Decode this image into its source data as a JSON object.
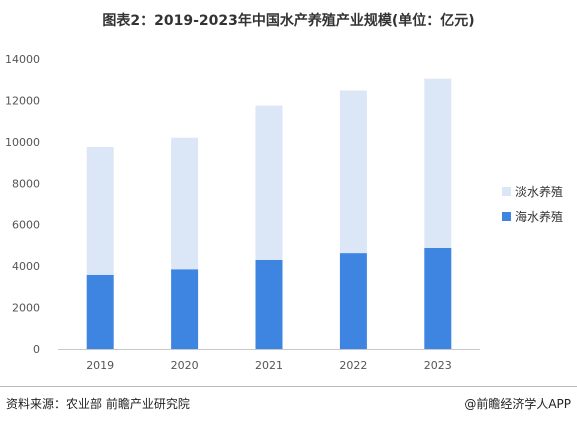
{
  "title": "图表2：2019-2023年中国水产养殖产业规模(单位：亿元)",
  "source": "资料来源：农业部 前瞻产业研究院",
  "credit": "@前瞻经济学人APP",
  "chart_data": {
    "type": "bar",
    "stacked": true,
    "title": "图表2：2019-2023年中国水产养殖产业规模(单位：亿元)",
    "categories": [
      "2019",
      "2020",
      "2021",
      "2022",
      "2023"
    ],
    "series": [
      {
        "name": "海水养殖",
        "values": [
          3580,
          3850,
          4300,
          4630,
          4880
        ],
        "color": "#3d85e0"
      },
      {
        "name": "淡水养殖",
        "values": [
          6170,
          6350,
          7450,
          7850,
          8170
        ],
        "color": "#dbe6f6"
      }
    ],
    "ylim": [
      0,
      14000
    ],
    "yticks": [
      0,
      2000,
      4000,
      6000,
      8000,
      10000,
      12000,
      14000
    ],
    "grid": false,
    "legend_position": "right"
  }
}
